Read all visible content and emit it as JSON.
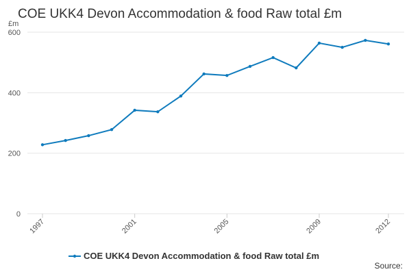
{
  "chart_data": {
    "type": "line",
    "title": "COE UKK4 Devon Accommodation & food Raw total £m",
    "ylabel": "£m",
    "source": "Source:",
    "x": [
      1997,
      1998,
      1999,
      2000,
      2001,
      2002,
      2003,
      2004,
      2005,
      2006,
      2007,
      2008,
      2009,
      2010,
      2011,
      2012
    ],
    "series": [
      {
        "name": "COE UKK4 Devon Accommodation & food Raw total £m",
        "color": "#0f7bbd",
        "values": [
          228,
          242,
          258,
          278,
          342,
          337,
          389,
          462,
          457,
          487,
          516,
          482,
          564,
          550,
          573,
          561
        ]
      }
    ],
    "xlim": [
      1997,
      2012
    ],
    "xticks": [
      1997,
      2001,
      2005,
      2009,
      2012
    ],
    "ylim": [
      0,
      600
    ],
    "yticks": [
      0,
      200,
      400,
      600
    ],
    "grid": true,
    "legend": "bottom"
  }
}
